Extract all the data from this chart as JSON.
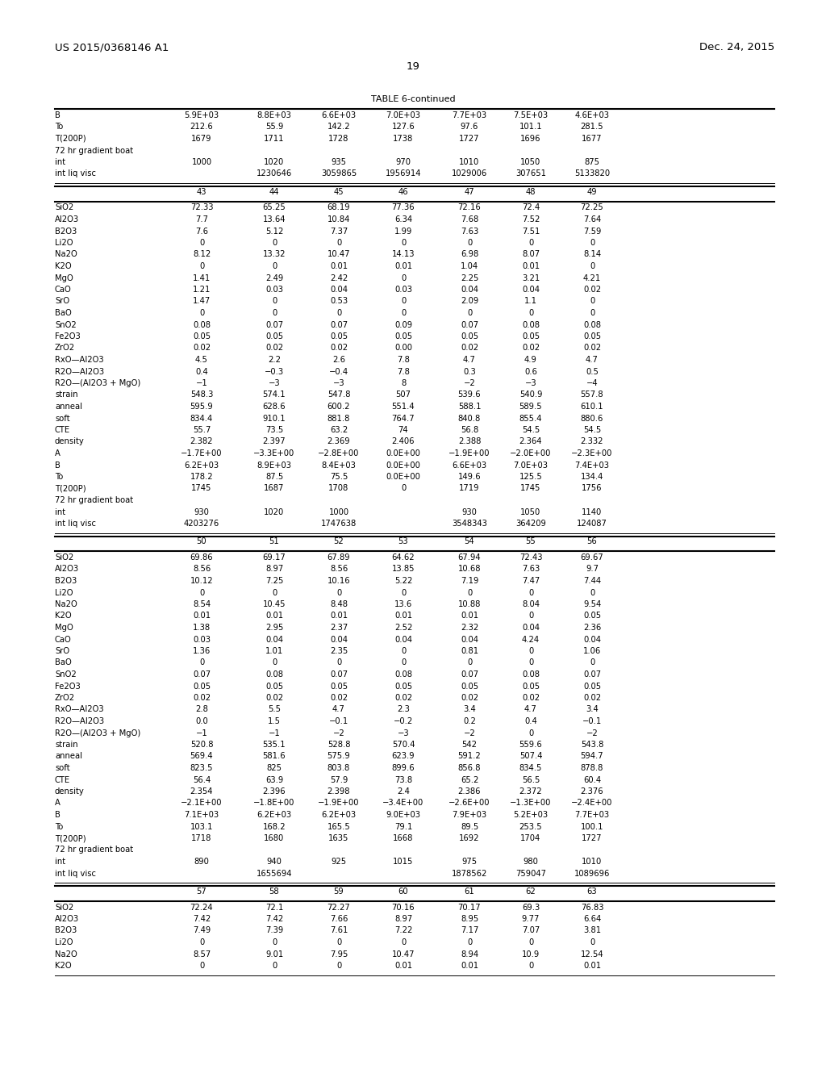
{
  "header_left": "US 2015/0368146 A1",
  "header_right": "Dec. 24, 2015",
  "page_number": "19",
  "table_title": "TABLE 6-continued",
  "background_color": "#ffffff",
  "text_color": "#000000",
  "font_size": 7.2,
  "header_font_size": 9.5,
  "section1": {
    "col_headers": [
      "",
      "43",
      "44",
      "45",
      "46",
      "47",
      "48",
      "49"
    ],
    "rows": [
      [
        "B",
        "5.9E+03",
        "8.8E+03",
        "6.6E+03",
        "7.0E+03",
        "7.7E+03",
        "7.5E+03",
        "4.6E+03"
      ],
      [
        "To",
        "212.6",
        "55.9",
        "142.2",
        "127.6",
        "97.6",
        "101.1",
        "281.5"
      ],
      [
        "T(200P)",
        "1679",
        "1711",
        "1728",
        "1738",
        "1727",
        "1696",
        "1677"
      ],
      [
        "72 hr gradient boat",
        "",
        "",
        "",
        "",
        "",
        "",
        ""
      ],
      [
        "int",
        "1000",
        "1020",
        "935",
        "970",
        "1010",
        "1050",
        "875"
      ],
      [
        "int liq visc",
        "",
        "1230646",
        "3059865",
        "1956914",
        "1029006",
        "307651",
        "5133820"
      ]
    ]
  },
  "section2": {
    "col_headers": [
      "",
      "43",
      "44",
      "45",
      "46",
      "47",
      "48",
      "49"
    ],
    "rows": [
      [
        "SiO2",
        "72.33",
        "65.25",
        "68.19",
        "77.36",
        "72.16",
        "72.4",
        "72.25"
      ],
      [
        "Al2O3",
        "7.7",
        "13.64",
        "10.84",
        "6.34",
        "7.68",
        "7.52",
        "7.64"
      ],
      [
        "B2O3",
        "7.6",
        "5.12",
        "7.37",
        "1.99",
        "7.63",
        "7.51",
        "7.59"
      ],
      [
        "Li2O",
        "0",
        "0",
        "0",
        "0",
        "0",
        "0",
        "0"
      ],
      [
        "Na2O",
        "8.12",
        "13.32",
        "10.47",
        "14.13",
        "6.98",
        "8.07",
        "8.14"
      ],
      [
        "K2O",
        "0",
        "0",
        "0.01",
        "0.01",
        "1.04",
        "0.01",
        "0"
      ],
      [
        "MgO",
        "1.41",
        "2.49",
        "2.42",
        "0",
        "2.25",
        "3.21",
        "4.21"
      ],
      [
        "CaO",
        "1.21",
        "0.03",
        "0.04",
        "0.03",
        "0.04",
        "0.04",
        "0.02"
      ],
      [
        "SrO",
        "1.47",
        "0",
        "0.53",
        "0",
        "2.09",
        "1.1",
        "0"
      ],
      [
        "BaO",
        "0",
        "0",
        "0",
        "0",
        "0",
        "0",
        "0"
      ],
      [
        "SnO2",
        "0.08",
        "0.07",
        "0.07",
        "0.09",
        "0.07",
        "0.08",
        "0.08"
      ],
      [
        "Fe2O3",
        "0.05",
        "0.05",
        "0.05",
        "0.05",
        "0.05",
        "0.05",
        "0.05"
      ],
      [
        "ZrO2",
        "0.02",
        "0.02",
        "0.02",
        "0.00",
        "0.02",
        "0.02",
        "0.02"
      ],
      [
        "RxO—Al2O3",
        "4.5",
        "2.2",
        "2.6",
        "7.8",
        "4.7",
        "4.9",
        "4.7"
      ],
      [
        "R2O—Al2O3",
        "0.4",
        "−0.3",
        "−0.4",
        "7.8",
        "0.3",
        "0.6",
        "0.5"
      ],
      [
        "R2O—(Al2O3 + MgO)",
        "−1",
        "−3",
        "−3",
        "8",
        "−2",
        "−3",
        "−4"
      ],
      [
        "strain",
        "548.3",
        "574.1",
        "547.8",
        "507",
        "539.6",
        "540.9",
        "557.8"
      ],
      [
        "anneal",
        "595.9",
        "628.6",
        "600.2",
        "551.4",
        "588.1",
        "589.5",
        "610.1"
      ],
      [
        "soft",
        "834.4",
        "910.1",
        "881.8",
        "764.7",
        "840.8",
        "855.4",
        "880.6"
      ],
      [
        "CTE",
        "55.7",
        "73.5",
        "63.2",
        "74",
        "56.8",
        "54.5",
        "54.5"
      ],
      [
        "density",
        "2.382",
        "2.397",
        "2.369",
        "2.406",
        "2.388",
        "2.364",
        "2.332"
      ],
      [
        "A",
        "−1.7E+00",
        "−3.3E+00",
        "−2.8E+00",
        "0.0E+00",
        "−1.9E+00",
        "−2.0E+00",
        "−2.3E+00"
      ],
      [
        "B",
        "6.2E+03",
        "8.9E+03",
        "8.4E+03",
        "0.0E+00",
        "6.6E+03",
        "7.0E+03",
        "7.4E+03"
      ],
      [
        "To",
        "178.2",
        "87.5",
        "75.5",
        "0.0E+00",
        "149.6",
        "125.5",
        "134.4"
      ],
      [
        "T(200P)",
        "1745",
        "1687",
        "1708",
        "0",
        "1719",
        "1745",
        "1756"
      ],
      [
        "72 hr gradient boat",
        "",
        "",
        "",
        "",
        "",
        "",
        ""
      ],
      [
        "int",
        "930",
        "1020",
        "1000",
        "",
        "930",
        "1050",
        "1140"
      ],
      [
        "int liq visc",
        "4203276",
        "",
        "1747638",
        "",
        "3548343",
        "364209",
        "124087"
      ]
    ]
  },
  "section3": {
    "col_headers": [
      "",
      "50",
      "51",
      "52",
      "53",
      "54",
      "55",
      "56"
    ],
    "rows": [
      [
        "SiO2",
        "69.86",
        "69.17",
        "67.89",
        "64.62",
        "67.94",
        "72.43",
        "69.67"
      ],
      [
        "Al2O3",
        "8.56",
        "8.97",
        "8.56",
        "13.85",
        "10.68",
        "7.63",
        "9.7"
      ],
      [
        "B2O3",
        "10.12",
        "7.25",
        "10.16",
        "5.22",
        "7.19",
        "7.47",
        "7.44"
      ],
      [
        "Li2O",
        "0",
        "0",
        "0",
        "0",
        "0",
        "0",
        "0"
      ],
      [
        "Na2O",
        "8.54",
        "10.45",
        "8.48",
        "13.6",
        "10.88",
        "8.04",
        "9.54"
      ],
      [
        "K2O",
        "0.01",
        "0.01",
        "0.01",
        "0.01",
        "0.01",
        "0",
        "0.05"
      ],
      [
        "MgO",
        "1.38",
        "2.95",
        "2.37",
        "2.52",
        "2.32",
        "0.04",
        "2.36"
      ],
      [
        "CaO",
        "0.03",
        "0.04",
        "0.04",
        "0.04",
        "0.04",
        "4.24",
        "0.04"
      ],
      [
        "SrO",
        "1.36",
        "1.01",
        "2.35",
        "0",
        "0.81",
        "0",
        "1.06"
      ],
      [
        "BaO",
        "0",
        "0",
        "0",
        "0",
        "0",
        "0",
        "0"
      ],
      [
        "SnO2",
        "0.07",
        "0.08",
        "0.07",
        "0.08",
        "0.07",
        "0.08",
        "0.07"
      ],
      [
        "Fe2O3",
        "0.05",
        "0.05",
        "0.05",
        "0.05",
        "0.05",
        "0.05",
        "0.05"
      ],
      [
        "ZrO2",
        "0.02",
        "0.02",
        "0.02",
        "0.02",
        "0.02",
        "0.02",
        "0.02"
      ],
      [
        "RxO—Al2O3",
        "2.8",
        "5.5",
        "4.7",
        "2.3",
        "3.4",
        "4.7",
        "3.4"
      ],
      [
        "R2O—Al2O3",
        "0.0",
        "1.5",
        "−0.1",
        "−0.2",
        "0.2",
        "0.4",
        "−0.1"
      ],
      [
        "R2O—(Al2O3 + MgO)",
        "−1",
        "−1",
        "−2",
        "−3",
        "−2",
        "0",
        "−2"
      ],
      [
        "strain",
        "520.8",
        "535.1",
        "528.8",
        "570.4",
        "542",
        "559.6",
        "543.8"
      ],
      [
        "anneal",
        "569.4",
        "581.6",
        "575.9",
        "623.9",
        "591.2",
        "507.4",
        "594.7"
      ],
      [
        "soft",
        "823.5",
        "825",
        "803.8",
        "899.6",
        "856.8",
        "834.5",
        "878.8"
      ],
      [
        "CTE",
        "56.4",
        "63.9",
        "57.9",
        "73.8",
        "65.2",
        "56.5",
        "60.4"
      ],
      [
        "density",
        "2.354",
        "2.396",
        "2.398",
        "2.4",
        "2.386",
        "2.372",
        "2.376"
      ],
      [
        "A",
        "−2.1E+00",
        "−1.8E+00",
        "−1.9E+00",
        "−3.4E+00",
        "−2.6E+00",
        "−1.3E+00",
        "−2.4E+00"
      ],
      [
        "B",
        "7.1E+03",
        "6.2E+03",
        "6.2E+03",
        "9.0E+03",
        "7.9E+03",
        "5.2E+03",
        "7.7E+03"
      ],
      [
        "To",
        "103.1",
        "168.2",
        "165.5",
        "79.1",
        "89.5",
        "253.5",
        "100.1"
      ],
      [
        "T(200P)",
        "1718",
        "1680",
        "1635",
        "1668",
        "1692",
        "1704",
        "1727"
      ],
      [
        "72 hr gradient boat",
        "",
        "",
        "",
        "",
        "",
        "",
        ""
      ],
      [
        "int",
        "890",
        "940",
        "925",
        "1015",
        "975",
        "980",
        "1010"
      ],
      [
        "int liq visc",
        "",
        "1655694",
        "",
        "",
        "1878562",
        "759047",
        "1089696"
      ]
    ]
  },
  "section4": {
    "col_headers": [
      "",
      "57",
      "58",
      "59",
      "60",
      "61",
      "62",
      "63"
    ],
    "rows": [
      [
        "SiO2",
        "72.24",
        "72.1",
        "72.27",
        "70.16",
        "70.17",
        "69.3",
        "76.83"
      ],
      [
        "Al2O3",
        "7.42",
        "7.42",
        "7.66",
        "8.97",
        "8.95",
        "9.77",
        "6.64"
      ],
      [
        "B2O3",
        "7.49",
        "7.39",
        "7.61",
        "7.22",
        "7.17",
        "7.07",
        "3.81"
      ],
      [
        "Li2O",
        "0",
        "0",
        "0",
        "0",
        "0",
        "0",
        "0"
      ],
      [
        "Na2O",
        "8.57",
        "9.01",
        "7.95",
        "10.47",
        "8.94",
        "10.9",
        "12.54"
      ],
      [
        "K2O",
        "0",
        "0",
        "0",
        "0.01",
        "0.01",
        "0",
        "0.01"
      ]
    ]
  }
}
